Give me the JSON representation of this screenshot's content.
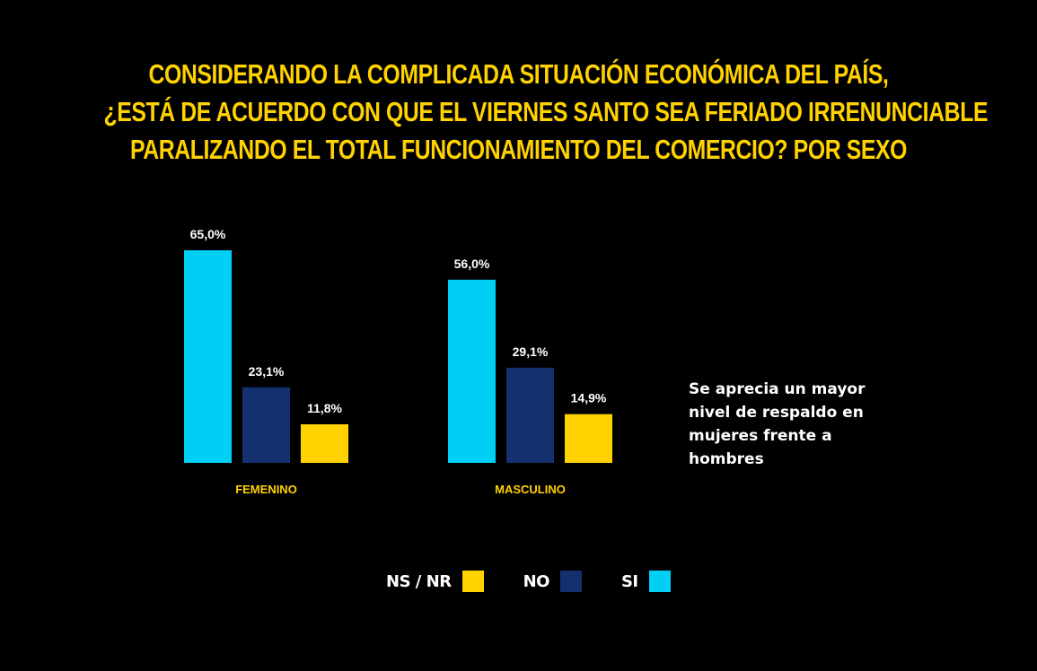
{
  "title_lines": [
    "CONSIDERANDO LA COMPLICADA SITUACIÓN ECONÓMICA DEL PAÍS,",
    "¿ESTÁ DE ACUERDO CON QUE EL VIERNES SANTO SEA FERIADO IRRENUNCIABLE",
    "PARALIZANDO EL TOTAL FUNCIONAMIENTO DEL COMERCIO? POR SEXO"
  ],
  "note": "Se aprecia un mayor nivel de respaldo en mujeres frente a hombres",
  "colors": {
    "background": "#000000",
    "title": "#FFD200",
    "si": "#00CFF5",
    "no": "#14306E",
    "nsnr": "#FFD200",
    "category_label": "#FFD200",
    "value_label": "#FFFFFF"
  },
  "legend": [
    {
      "label": "NS / NR",
      "color": "#FFD200"
    },
    {
      "label": "NO",
      "color": "#14306E"
    },
    {
      "label": "SI",
      "color": "#00CFF5"
    }
  ],
  "chart_data": {
    "type": "bar",
    "title": "CONSIDERANDO LA COMPLICADA SITUACIÓN ECONÓMICA DEL PAÍS, ¿ESTÁ DE ACUERDO CON QUE EL VIERNES SANTO SEA FERIADO IRRENUNCIABLE PARALIZANDO EL TOTAL FUNCIONAMIENTO DEL COMERCIO? POR SEXO",
    "categories": [
      "FEMENINO",
      "MASCULINO"
    ],
    "series": [
      {
        "name": "SI",
        "values": [
          65.0,
          56.0
        ],
        "labels": [
          "65,0%",
          "56,0%"
        ],
        "color": "#00CFF5"
      },
      {
        "name": "NO",
        "values": [
          23.1,
          29.1
        ],
        "labels": [
          "23,1%",
          "29,1%"
        ],
        "color": "#14306E"
      },
      {
        "name": "NS / NR",
        "values": [
          11.8,
          14.9
        ],
        "labels": [
          "11,8%",
          "14,9%"
        ],
        "color": "#FFD200"
      }
    ],
    "ylim": [
      0,
      65
    ],
    "grid": false,
    "legend_position": "bottom"
  }
}
